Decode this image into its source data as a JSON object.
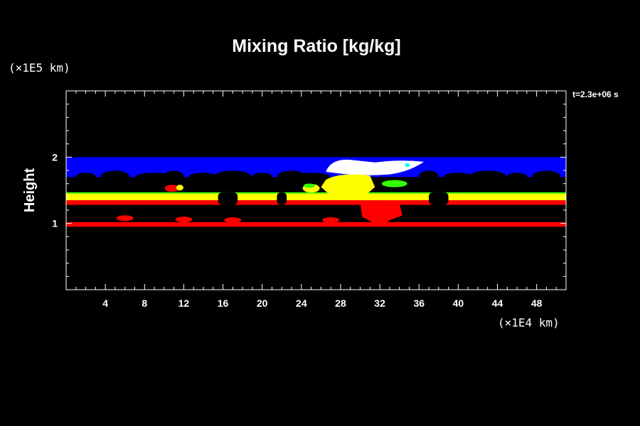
{
  "chart_data": {
    "type": "heatmap",
    "title": "Mixing Ratio [kg/kg]",
    "ylabel": "Height",
    "y_unit": "(×1E5 km)",
    "x_unit": "(×1E4 km)",
    "time_label": "t=2.3e+06 s",
    "xlim": [
      0,
      51
    ],
    "ylim": [
      0,
      3
    ],
    "x_ticks": [
      "4",
      "8",
      "12",
      "16",
      "20",
      "24",
      "28",
      "32",
      "36",
      "40",
      "44",
      "48"
    ],
    "x_tick_values": [
      4,
      8,
      12,
      16,
      20,
      24,
      28,
      32,
      36,
      40,
      44,
      48
    ],
    "y_ticks": [
      "1",
      "2"
    ],
    "y_tick_values": [
      1,
      2
    ],
    "colors": {
      "background": "#000000",
      "blue": "#0000ff",
      "white": "#ffffff",
      "yellow": "#ffff00",
      "green": "#33ff00",
      "red": "#ff0000",
      "cyan": "#00ffff"
    },
    "regions": [
      {
        "name": "upper-layer",
        "color": "blue",
        "x": [
          0,
          51
        ],
        "y": [
          1.7,
          2.0
        ]
      },
      {
        "name": "top-cloud",
        "color": "white",
        "x": [
          26,
          36.5
        ],
        "y": [
          1.72,
          1.96
        ]
      },
      {
        "name": "green-band",
        "color": "green",
        "x": [
          0,
          51
        ],
        "y": [
          1.43,
          1.47
        ]
      },
      {
        "name": "yellow-band",
        "color": "yellow",
        "x": [
          0,
          51
        ],
        "y": [
          1.35,
          1.45
        ]
      },
      {
        "name": "convective-core",
        "color": "yellow",
        "x": [
          26.5,
          31.5
        ],
        "y": [
          1.4,
          1.75
        ]
      },
      {
        "name": "red-band-upper",
        "color": "red",
        "x": [
          0,
          51
        ],
        "y": [
          1.28,
          1.35
        ]
      },
      {
        "name": "red-plume",
        "color": "red",
        "x": [
          30,
          34
        ],
        "y": [
          1.0,
          1.3
        ]
      },
      {
        "name": "red-band-lower",
        "color": "red",
        "x": [
          0,
          51
        ],
        "y": [
          0.95,
          1.02
        ]
      }
    ]
  }
}
